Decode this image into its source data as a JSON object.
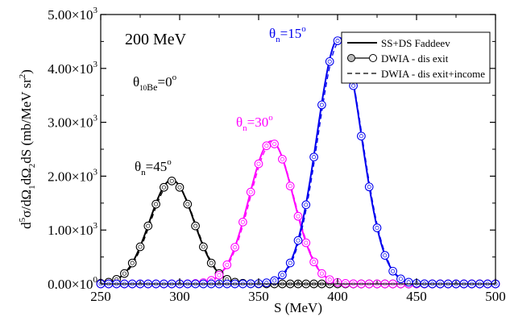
{
  "chart_data": {
    "type": "line",
    "xlabel": "S (MeV)",
    "ylabel_parts": {
      "d": "d",
      "five": "5",
      "sigma": "σ/dΩ",
      "one": "1",
      "d2": "dΩ",
      "two": "2",
      "ds": "dS  (mb/MeV sr",
      "exp2": "2",
      "close": ")"
    },
    "xlim": [
      250,
      500
    ],
    "ylim": [
      0,
      5000
    ],
    "x_ticks": [
      "250",
      "300",
      "350",
      "400",
      "450",
      "500"
    ],
    "x_tick_values": [
      250,
      300,
      350,
      400,
      450,
      500
    ],
    "y_ticks": [
      {
        "value": 0,
        "mant": "0.00",
        "exp": "0"
      },
      {
        "value": 1000,
        "mant": "1.00",
        "exp": "3"
      },
      {
        "value": 2000,
        "mant": "2.00",
        "exp": "3"
      },
      {
        "value": 3000,
        "mant": "3.00",
        "exp": "3"
      },
      {
        "value": 4000,
        "mant": "4.00",
        "exp": "3"
      },
      {
        "value": 5000,
        "mant": "5.00",
        "exp": "3"
      }
    ],
    "annotations": {
      "energy": "200 MeV",
      "theta_be": {
        "theta": "θ",
        "sub": "10",
        "be": "Be",
        "eq": "=0",
        "deg": "o"
      },
      "theta45": {
        "theta": "θ",
        "sub": "n",
        "eq": "=45",
        "deg": "o"
      },
      "theta30": {
        "theta": "θ",
        "sub": "n",
        "eq": "=30",
        "deg": "o"
      },
      "theta15": {
        "theta": "θ",
        "sub": "n",
        "eq": "=15",
        "deg": "o"
      }
    },
    "legend": {
      "position": "top-right",
      "entries": [
        "SS+DS Faddeev",
        "DWIA - dis exit",
        "DWIA - dis exit+income"
      ]
    },
    "series": [
      {
        "angle": "45",
        "color": "#000000",
        "peak_x": 295,
        "peak_y": 1930,
        "sigma": 14
      },
      {
        "angle": "30",
        "color": "#ff00ff",
        "peak_x": 358,
        "peak_y": 2650,
        "sigma": 14
      },
      {
        "angle": "15",
        "color": "#0000ee",
        "peak_x": 401,
        "peak_y": 4570,
        "sigma": 14
      }
    ],
    "marker_spacing": 5,
    "grid": false
  }
}
